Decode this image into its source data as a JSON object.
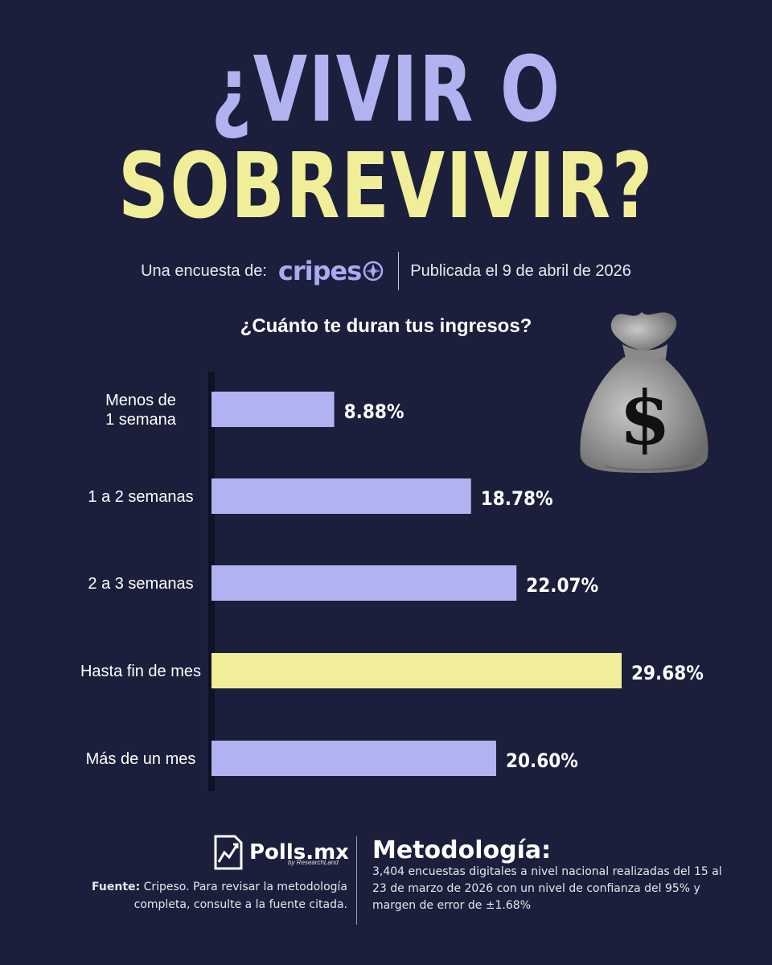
{
  "header": {
    "title_line1": "¿VIVIR O",
    "title_line2": "SOBREVIVIR?",
    "survey_prefix": "Una encuesta de:",
    "brand": "cripes",
    "published": "Publicada el 9 de abril de 2026"
  },
  "chart_data": {
    "type": "bar",
    "orientation": "horizontal",
    "title": "¿Cuánto te duran tus ingresos?",
    "categories": [
      [
        "Menos de",
        "1 semana"
      ],
      [
        "1 a 2 semanas"
      ],
      [
        "2 a 3 semanas"
      ],
      [
        "Hasta fin de mes"
      ],
      [
        "Más de un mes"
      ]
    ],
    "values": [
      8.88,
      18.78,
      22.07,
      29.68,
      20.6
    ],
    "labels": [
      "8.88%",
      "18.78%",
      "22.07%",
      "29.68%",
      "20.60%"
    ],
    "highlight_index": 3,
    "xlim": [
      0,
      29.68
    ],
    "grid": false,
    "colors": {
      "bar": "#b0b3f0",
      "highlight": "#f0ee99",
      "axis": "#0f1126"
    }
  },
  "footer": {
    "logo_text": "Polls.mx",
    "logo_sub": "by ResearchLand",
    "source_label": "Fuente:",
    "source_text": "Cripeso. Para revisar la metodología completa, consulte a la fuente citada.",
    "method_title": "Metodología:",
    "method_text": "3,404 encuestas digitales a nivel nacional realizadas del 15 al 23 de marzo de 2026 con un nivel de confianza del 95% y margen de error de ±1.68%"
  },
  "colors": {
    "background": "#1c1f3b",
    "lavender": "#b0b3f0",
    "yellow": "#f0ee99"
  },
  "icons": [
    "money-bag-icon",
    "compass-icon",
    "chart-logo-icon"
  ]
}
